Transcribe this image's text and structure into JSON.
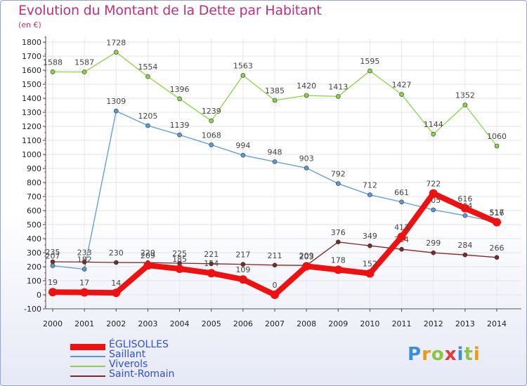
{
  "chart_data": {
    "type": "line",
    "title": "Evolution du Montant de la Dette par Habitant",
    "subtitle": "(en €)",
    "x": [
      "2000",
      "2001",
      "2002",
      "2003",
      "2004",
      "2005",
      "2006",
      "2007",
      "2008",
      "2009",
      "2010",
      "2011",
      "2012",
      "2013",
      "2014"
    ],
    "y_ticks": [
      -100,
      0,
      100,
      200,
      300,
      400,
      500,
      600,
      700,
      800,
      900,
      1000,
      1100,
      1200,
      1300,
      1400,
      1500,
      1600,
      1700,
      1800
    ],
    "ylim": [
      -100,
      1800
    ],
    "grid": true,
    "legend_position": "bottom-left",
    "series": [
      {
        "name": "Viverols",
        "color": "#8cd34a",
        "values": [
          1588,
          1587,
          1728,
          1554,
          1396,
          1239,
          1563,
          1385,
          1420,
          1413,
          1595,
          1427,
          1144,
          1352,
          1060
        ]
      },
      {
        "name": "Saillant",
        "color": "#5a9bd5",
        "values": [
          207,
          182,
          1309,
          1205,
          1139,
          1068,
          994,
          948,
          903,
          792,
          712,
          661,
          605,
          564,
          516
        ]
      },
      {
        "name": "Saint-Romain",
        "color": "#7a2a2a",
        "values": [
          235,
          233,
          230,
          229,
          225,
          221,
          217,
          211,
          209,
          376,
          349,
          324,
          299,
          284,
          266
        ]
      },
      {
        "name": "ÉGLISOLLES",
        "color": "#ee1111",
        "values": [
          19,
          17,
          14,
          209,
          185,
          154,
          109,
          0,
          203,
          178,
          152,
          413,
          722,
          616,
          517
        ]
      }
    ]
  },
  "logo": {
    "text": "Proxiti"
  }
}
